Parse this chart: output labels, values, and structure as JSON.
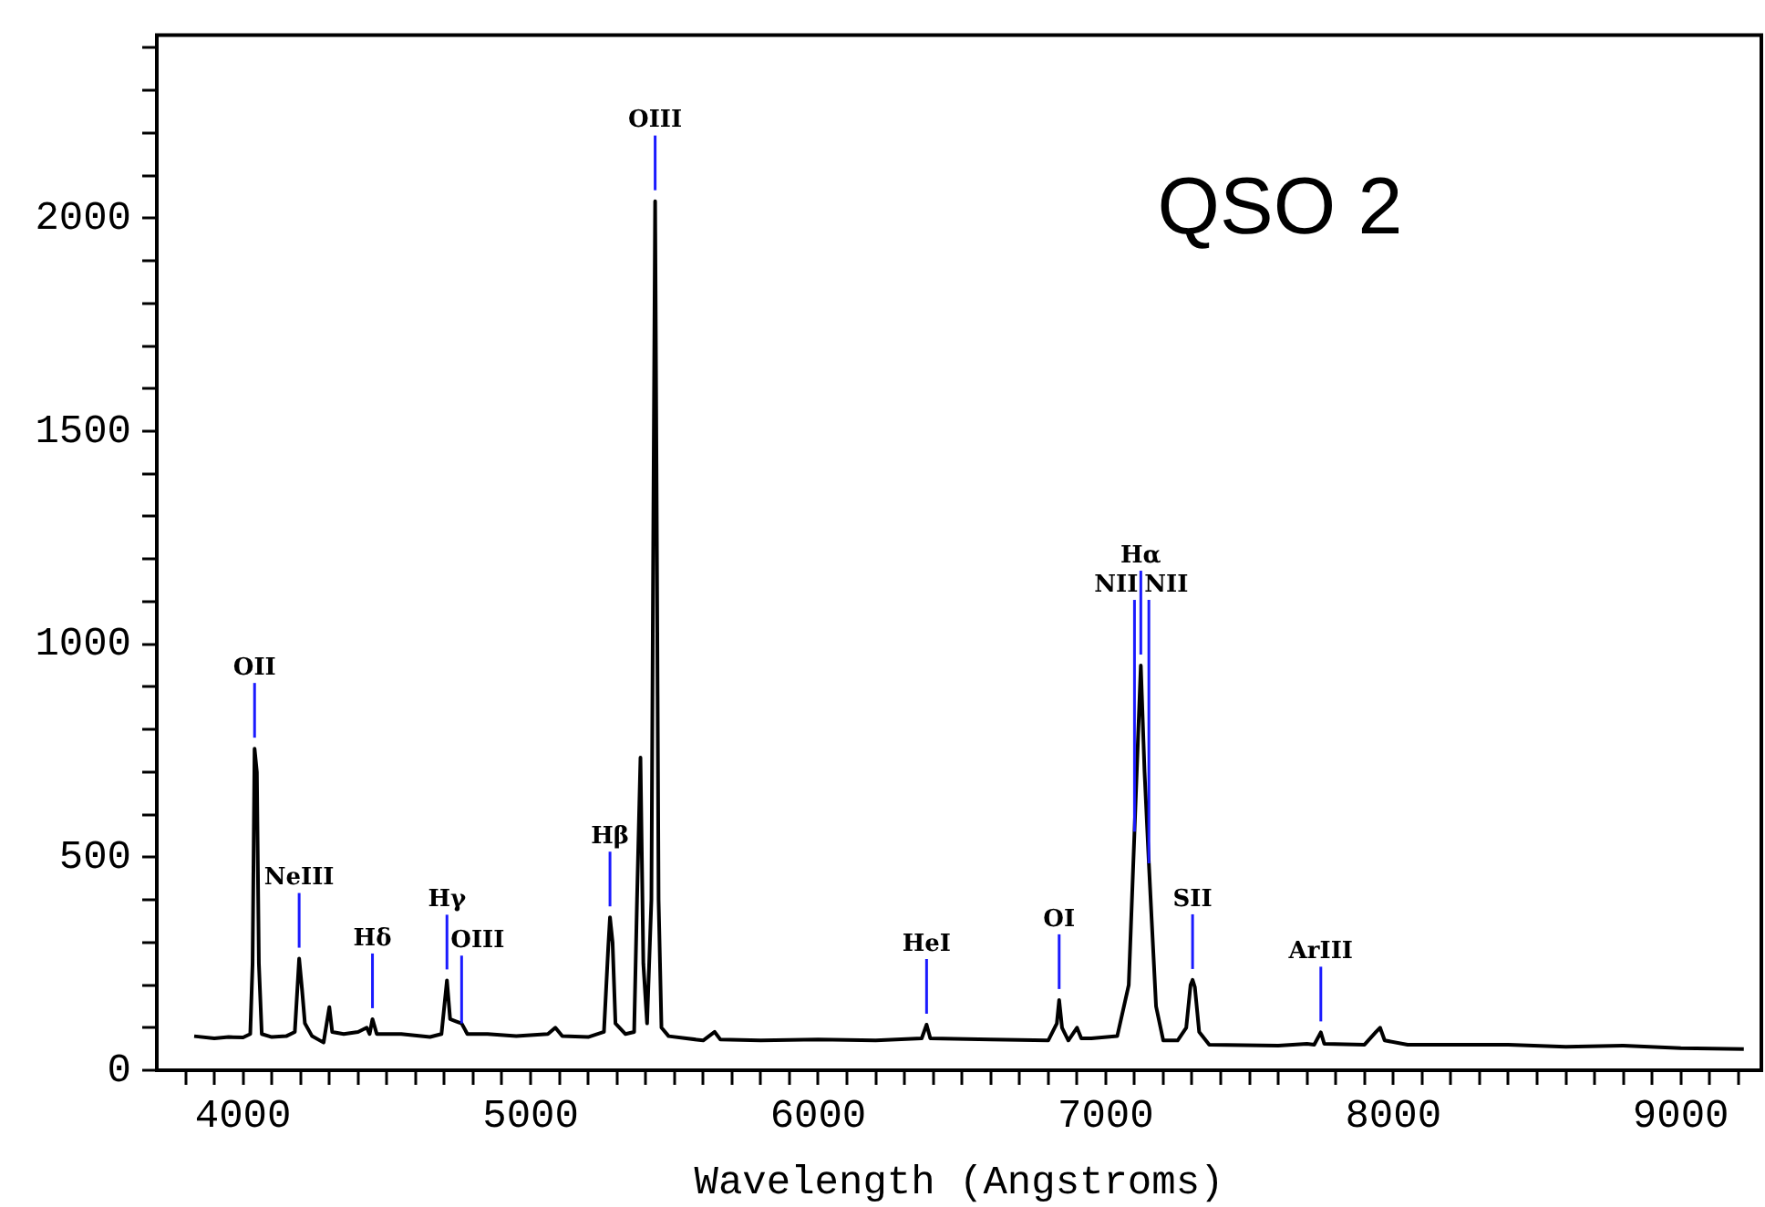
{
  "chart_data": {
    "type": "line",
    "title": "QSO 2",
    "xlabel": "Wavelength (Angstroms)",
    "xlim": [
      3700,
      9280
    ],
    "ylim": [
      0,
      2430
    ],
    "xticks": [
      {
        "value": 3800,
        "label": null
      },
      {
        "value": 3900,
        "label": null
      },
      4000,
      {
        "value": 4100,
        "label": null
      },
      {
        "value": 4200,
        "label": null
      },
      {
        "value": 4300,
        "label": null
      },
      {
        "value": 4400,
        "label": null
      },
      {
        "value": 4500,
        "label": null
      },
      {
        "value": 4600,
        "label": null
      },
      {
        "value": 4700,
        "label": null
      },
      {
        "value": 4800,
        "label": null
      },
      {
        "value": 4900,
        "label": null
      },
      5000,
      {
        "value": 5100,
        "label": null
      },
      {
        "value": 5200,
        "label": null
      },
      {
        "value": 5300,
        "label": null
      },
      {
        "value": 5400,
        "label": null
      },
      {
        "value": 5500,
        "label": null
      },
      {
        "value": 5600,
        "label": null
      },
      {
        "value": 5700,
        "label": null
      },
      {
        "value": 5800,
        "label": null
      },
      {
        "value": 5900,
        "label": null
      },
      6000,
      {
        "value": 6100,
        "label": null
      },
      {
        "value": 6200,
        "label": null
      },
      {
        "value": 6300,
        "label": null
      },
      {
        "value": 6400,
        "label": null
      },
      {
        "value": 6500,
        "label": null
      },
      {
        "value": 6600,
        "label": null
      },
      {
        "value": 6700,
        "label": null
      },
      {
        "value": 6800,
        "label": null
      },
      {
        "value": 6900,
        "label": null
      },
      7000,
      {
        "value": 7100,
        "label": null
      },
      {
        "value": 7200,
        "label": null
      },
      {
        "value": 7300,
        "label": null
      },
      {
        "value": 7400,
        "label": null
      },
      {
        "value": 7500,
        "label": null
      },
      {
        "value": 7600,
        "label": null
      },
      {
        "value": 7700,
        "label": null
      },
      {
        "value": 7800,
        "label": null
      },
      {
        "value": 7900,
        "label": null
      },
      8000,
      {
        "value": 8100,
        "label": null
      },
      {
        "value": 8200,
        "label": null
      },
      {
        "value": 8300,
        "label": null
      },
      {
        "value": 8400,
        "label": null
      },
      {
        "value": 8500,
        "label": null
      },
      {
        "value": 8600,
        "label": null
      },
      {
        "value": 8700,
        "label": null
      },
      {
        "value": 8800,
        "label": null
      },
      {
        "value": 8900,
        "label": null
      },
      9000,
      {
        "value": 9100,
        "label": null
      },
      {
        "value": 9200,
        "label": null
      }
    ],
    "yticks": [
      0,
      {
        "value": 100,
        "label": null
      },
      {
        "value": 200,
        "label": null
      },
      {
        "value": 300,
        "label": null
      },
      {
        "value": 400,
        "label": null
      },
      500,
      {
        "value": 600,
        "label": null
      },
      {
        "value": 700,
        "label": null
      },
      {
        "value": 800,
        "label": null
      },
      {
        "value": 900,
        "label": null
      },
      1000,
      {
        "value": 1100,
        "label": null
      },
      {
        "value": 1200,
        "label": null
      },
      {
        "value": 1300,
        "label": null
      },
      {
        "value": 1400,
        "label": null
      },
      1500,
      {
        "value": 1600,
        "label": null
      },
      {
        "value": 1700,
        "label": null
      },
      {
        "value": 1800,
        "label": null
      },
      {
        "value": 1900,
        "label": null
      },
      2000,
      {
        "value": 2100,
        "label": null
      },
      {
        "value": 2200,
        "label": null
      },
      {
        "value": 2300,
        "label": null
      },
      {
        "value": 2400,
        "label": null
      }
    ],
    "series": [
      {
        "color": "#000000",
        "x": [
          3830,
          3900,
          3950,
          4000,
          4025,
          4033,
          4040,
          4048,
          4055,
          4065,
          4100,
          4150,
          4180,
          4195,
          4205,
          4215,
          4240,
          4280,
          4300,
          4310,
          4350,
          4400,
          4430,
          4440,
          4450,
          4465,
          4550,
          4650,
          4690,
          4709,
          4720,
          4740,
          4760,
          4780,
          4850,
          4950,
          5060,
          5086,
          5110,
          5200,
          5255,
          5270,
          5276,
          5285,
          5295,
          5330,
          5360,
          5370,
          5382,
          5392,
          5405,
          5420,
          5427,
          5433,
          5438,
          5445,
          5455,
          5480,
          5600,
          5640,
          5660,
          5800,
          6000,
          6200,
          6360,
          6377,
          6390,
          6600,
          6800,
          6830,
          6838,
          6848,
          6870,
          6900,
          6915,
          6950,
          7040,
          7080,
          7105,
          7122,
          7135,
          7150,
          7160,
          7175,
          7200,
          7250,
          7280,
          7295,
          7302,
          7310,
          7325,
          7360,
          7600,
          7700,
          7725,
          7748,
          7760,
          7900,
          7940,
          7954,
          7970,
          8050,
          8400,
          8600,
          8800,
          9000,
          9219
        ],
        "values": [
          80,
          75,
          78,
          77,
          85,
          250,
          755,
          700,
          250,
          85,
          78,
          80,
          90,
          262,
          190,
          110,
          80,
          65,
          148,
          90,
          85,
          90,
          100,
          85,
          120,
          85,
          85,
          78,
          85,
          211,
          120,
          115,
          110,
          85,
          85,
          80,
          85,
          100,
          80,
          78,
          90,
          290,
          359,
          300,
          110,
          85,
          90,
          400,
          734,
          250,
          110,
          400,
          1320,
          2040,
          1380,
          400,
          100,
          80,
          70,
          90,
          72,
          70,
          72,
          70,
          75,
          107,
          75,
          72,
          70,
          110,
          165,
          100,
          70,
          100,
          75,
          75,
          80,
          200,
          650,
          950,
          700,
          486,
          350,
          150,
          70,
          70,
          100,
          200,
          212,
          195,
          90,
          60,
          58,
          62,
          60,
          89,
          62,
          60,
          90,
          100,
          70,
          60,
          60,
          55,
          58,
          52,
          50
        ]
      }
    ],
    "annotations": [
      {
        "text": "OIII",
        "x": 5433,
        "y": 2040
      },
      {
        "text": "OII",
        "x": 4040,
        "y": 755
      },
      {
        "text": "NeIII",
        "x": 4195,
        "y": 262
      },
      {
        "text": "Hδ",
        "x": 4450,
        "y": 120
      },
      {
        "text": "Hγ",
        "x": 4709,
        "y": 211
      },
      {
        "text": "OIII",
        "x": 4760,
        "y": 110
      },
      {
        "text": "Hβ",
        "x": 5276,
        "y": 359
      },
      {
        "text": "HeI",
        "x": 6377,
        "y": 107
      },
      {
        "text": "OI",
        "x": 6838,
        "y": 165
      },
      {
        "text": "Hα",
        "x": 7122,
        "y": 950
      },
      {
        "text": "NII",
        "x": 7100,
        "y": 560
      },
      {
        "text": "NII",
        "x": 7150,
        "y": 486
      },
      {
        "text": "SII",
        "x": 7302,
        "y": 212
      },
      {
        "text": "ArIII",
        "x": 7748,
        "y": 89
      }
    ]
  }
}
